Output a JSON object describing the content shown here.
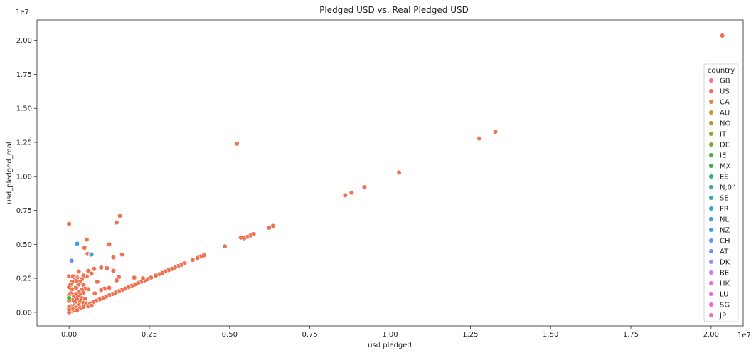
{
  "chart_data": {
    "type": "scatter",
    "title": "Pledged USD vs. Real Pledged USD",
    "xlabel": "usd pledged",
    "ylabel": "usd_pledged_real",
    "x_offset_label": "1e7",
    "y_offset_label": "1e7",
    "xlim": [
      -0.1,
      2.1
    ],
    "ylim": [
      -0.1,
      2.15
    ],
    "xticks": [
      0.0,
      0.25,
      0.5,
      0.75,
      1.0,
      1.25,
      1.5,
      1.75,
      2.0
    ],
    "xtick_labels": [
      "0.00",
      "0.25",
      "0.50",
      "0.75",
      "1.00",
      "1.25",
      "1.50",
      "1.75",
      "2.00"
    ],
    "yticks": [
      0.0,
      0.25,
      0.5,
      0.75,
      1.0,
      1.25,
      1.5,
      1.75,
      2.0
    ],
    "ytick_labels": [
      "0.00",
      "0.25",
      "0.50",
      "0.75",
      "1.00",
      "1.25",
      "1.50",
      "1.75",
      "2.00"
    ],
    "grid": false,
    "legend": {
      "title": "country",
      "placement": "right",
      "entries": [
        {
          "name": "GB",
          "color": "#f77189"
        },
        {
          "name": "US",
          "color": "#f0714f"
        },
        {
          "name": "CA",
          "color": "#dc8932"
        },
        {
          "name": "AU",
          "color": "#c39532"
        },
        {
          "name": "NO",
          "color": "#ae9d31"
        },
        {
          "name": "IT",
          "color": "#97a431"
        },
        {
          "name": "DE",
          "color": "#77ab31"
        },
        {
          "name": "IE",
          "color": "#50b131"
        },
        {
          "name": "MX",
          "color": "#33b142"
        },
        {
          "name": "ES",
          "color": "#34ae7e"
        },
        {
          "name": "N,0\"",
          "color": "#35ac9a"
        },
        {
          "name": "SE",
          "color": "#36aaaf"
        },
        {
          "name": "FR",
          "color": "#37a7c0"
        },
        {
          "name": "NL",
          "color": "#38a4d3"
        },
        {
          "name": "NZ",
          "color": "#3ba3ec"
        },
        {
          "name": "CH",
          "color": "#5b9af3"
        },
        {
          "name": "AT",
          "color": "#6e8ff4"
        },
        {
          "name": "DK",
          "color": "#a48cf4"
        },
        {
          "name": "BE",
          "color": "#cc7af4"
        },
        {
          "name": "HK",
          "color": "#e96cd8"
        },
        {
          "name": "LU",
          "color": "#f45fe8"
        },
        {
          "name": "SG",
          "color": "#f565cc"
        },
        {
          "name": "JP",
          "color": "#f56db0"
        }
      ]
    },
    "series": [
      {
        "name": "US",
        "color": "#f0714f",
        "points": [
          [
            2.035,
            2.035
          ],
          [
            1.328,
            1.328
          ],
          [
            1.278,
            1.278
          ],
          [
            1.028,
            1.028
          ],
          [
            0.92,
            0.92
          ],
          [
            0.88,
            0.88
          ],
          [
            0.86,
            0.86
          ],
          [
            0.635,
            0.635
          ],
          [
            0.623,
            0.623
          ],
          [
            0.575,
            0.575
          ],
          [
            0.565,
            0.565
          ],
          [
            0.555,
            0.555
          ],
          [
            0.545,
            0.545
          ],
          [
            0.535,
            0.55
          ],
          [
            0.485,
            0.485
          ],
          [
            0.523,
            1.24
          ],
          [
            0.42,
            0.42
          ],
          [
            0.41,
            0.41
          ],
          [
            0.4,
            0.4
          ],
          [
            0.385,
            0.385
          ],
          [
            0.36,
            0.36
          ],
          [
            0.35,
            0.35
          ],
          [
            0.34,
            0.34
          ],
          [
            0.33,
            0.33
          ],
          [
            0.32,
            0.32
          ],
          [
            0.31,
            0.31
          ],
          [
            0.3,
            0.3
          ],
          [
            0.29,
            0.29
          ],
          [
            0.28,
            0.28
          ],
          [
            0.27,
            0.27
          ],
          [
            0.255,
            0.255
          ],
          [
            0.245,
            0.245
          ],
          [
            0.235,
            0.235
          ],
          [
            0.225,
            0.225
          ],
          [
            0.215,
            0.215
          ],
          [
            0.205,
            0.205
          ],
          [
            0.195,
            0.195
          ],
          [
            0.185,
            0.185
          ],
          [
            0.175,
            0.175
          ],
          [
            0.165,
            0.165
          ],
          [
            0.155,
            0.155
          ],
          [
            0.145,
            0.145
          ],
          [
            0.135,
            0.135
          ],
          [
            0.125,
            0.125
          ],
          [
            0.115,
            0.115
          ],
          [
            0.105,
            0.105
          ],
          [
            0.095,
            0.095
          ],
          [
            0.085,
            0.085
          ],
          [
            0.075,
            0.075
          ],
          [
            0.065,
            0.065
          ],
          [
            0.055,
            0.055
          ],
          [
            0.045,
            0.045
          ],
          [
            0.035,
            0.035
          ],
          [
            0.025,
            0.025
          ],
          [
            0.015,
            0.015
          ],
          [
            0.005,
            0.005
          ],
          [
            0.0,
            0.0
          ],
          [
            0.158,
            0.71
          ],
          [
            0.148,
            0.66
          ],
          [
            0.055,
            0.535
          ],
          [
            0.048,
            0.475
          ],
          [
            0.125,
            0.5
          ],
          [
            0.165,
            0.425
          ],
          [
            0.058,
            0.43
          ],
          [
            0.068,
            0.425
          ],
          [
            0.0,
            0.65
          ],
          [
            0.138,
            0.405
          ],
          [
            0.078,
            0.32
          ],
          [
            0.1,
            0.33
          ],
          [
            0.118,
            0.325
          ],
          [
            0.138,
            0.305
          ],
          [
            0.06,
            0.305
          ],
          [
            0.07,
            0.285
          ],
          [
            0.055,
            0.265
          ],
          [
            0.03,
            0.3
          ],
          [
            0.045,
            0.27
          ],
          [
            0.0,
            0.265
          ],
          [
            0.012,
            0.265
          ],
          [
            0.025,
            0.255
          ],
          [
            0.04,
            0.245
          ],
          [
            0.02,
            0.245
          ],
          [
            0.088,
            0.225
          ],
          [
            0.02,
            0.23
          ],
          [
            0.035,
            0.225
          ],
          [
            0.01,
            0.225
          ],
          [
            0.005,
            0.205
          ],
          [
            0.03,
            0.205
          ],
          [
            0.045,
            0.2
          ],
          [
            0.155,
            0.26
          ],
          [
            0.203,
            0.255
          ],
          [
            0.23,
            0.25
          ],
          [
            0.148,
            0.235
          ],
          [
            0.125,
            0.18
          ],
          [
            0.11,
            0.175
          ],
          [
            0.1,
            0.165
          ],
          [
            0.08,
            0.14
          ],
          [
            0.06,
            0.17
          ],
          [
            0.05,
            0.175
          ],
          [
            0.04,
            0.165
          ],
          [
            0.02,
            0.18
          ],
          [
            0.0,
            0.185
          ],
          [
            0.01,
            0.17
          ],
          [
            0.03,
            0.15
          ],
          [
            0.045,
            0.145
          ],
          [
            0.035,
            0.13
          ],
          [
            0.02,
            0.135
          ],
          [
            0.005,
            0.14
          ],
          [
            0.0,
            0.125
          ],
          [
            0.015,
            0.115
          ],
          [
            0.028,
            0.115
          ],
          [
            0.04,
            0.105
          ],
          [
            0.05,
            0.1
          ],
          [
            0.025,
            0.095
          ],
          [
            0.01,
            0.09
          ],
          [
            0.0,
            0.085
          ],
          [
            0.018,
            0.075
          ],
          [
            0.035,
            0.075
          ],
          [
            0.045,
            0.07
          ],
          [
            0.055,
            0.065
          ],
          [
            0.065,
            0.06
          ],
          [
            0.03,
            0.055
          ],
          [
            0.015,
            0.05
          ],
          [
            0.005,
            0.045
          ],
          [
            0.0,
            0.04
          ],
          [
            0.02,
            0.035
          ],
          [
            0.01,
            0.025
          ],
          [
            0.0,
            0.02
          ],
          [
            0.035,
            0.03
          ],
          [
            0.025,
            0.015
          ],
          [
            0.045,
            0.04
          ],
          [
            0.06,
            0.045
          ],
          [
            0.07,
            0.05
          ]
        ]
      },
      {
        "name": "IE",
        "color": "#50b131",
        "points": [
          [
            0.0,
            0.105
          ]
        ]
      },
      {
        "name": "NZ",
        "color": "#3ba3ec",
        "points": [
          [
            0.025,
            0.505
          ]
        ]
      },
      {
        "name": "NL",
        "color": "#38a4d3",
        "points": [
          [
            0.07,
            0.425
          ]
        ]
      },
      {
        "name": "AT",
        "color": "#6e8ff4",
        "points": [
          [
            0.008,
            0.38
          ]
        ]
      }
    ]
  }
}
